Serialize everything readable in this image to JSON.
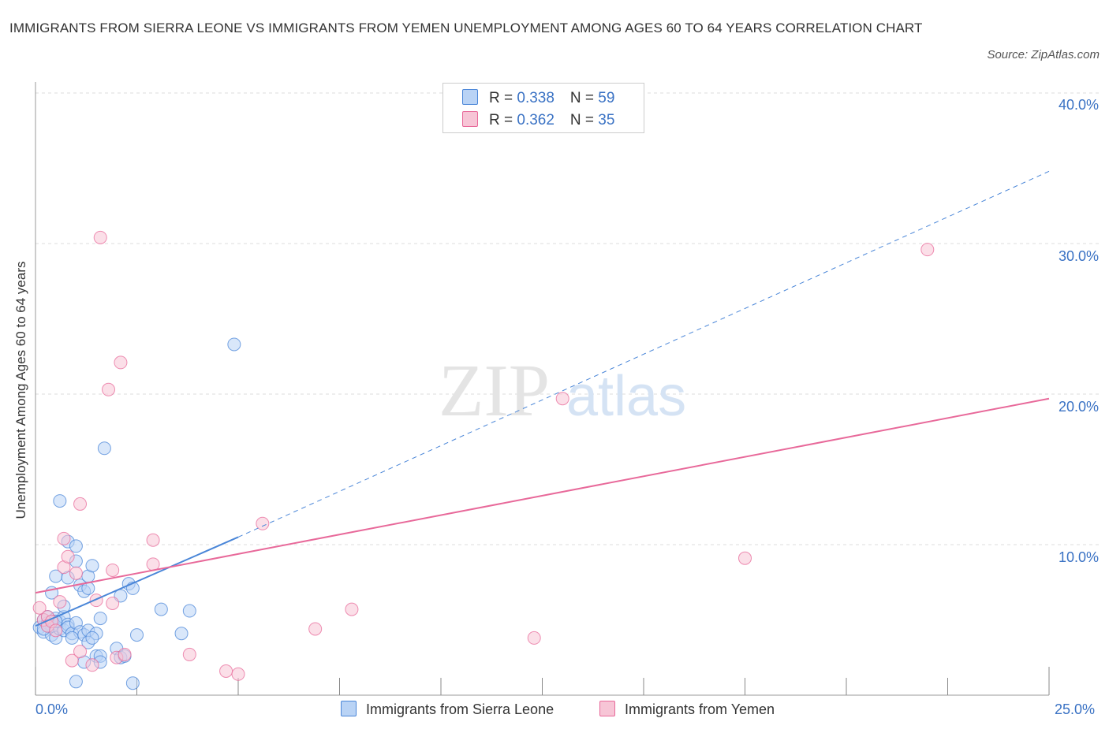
{
  "header": {
    "title": "IMMIGRANTS FROM SIERRA LEONE VS IMMIGRANTS FROM YEMEN UNEMPLOYMENT AMONG AGES 60 TO 64 YEARS CORRELATION CHART",
    "source": "Source: ZipAtlas.com"
  },
  "colors": {
    "blue": "#4a86d8",
    "blue_fill": "#b9d3f5",
    "pink": "#e8699a",
    "pink_fill": "#f7c5d6",
    "axis_text": "#3a72c4",
    "grid": "#dddddd"
  },
  "legend": {
    "rows": [
      {
        "r_label": "R = ",
        "r_value": "0.338",
        "n_label": "N = ",
        "n_value": "59"
      },
      {
        "r_label": "R = ",
        "r_value": "0.362",
        "n_label": "N = ",
        "n_value": "35"
      }
    ]
  },
  "watermark": {
    "zip": "ZIP",
    "atlas": "atlas"
  },
  "chart_data": {
    "type": "scatter",
    "title": "IMMIGRANTS FROM SIERRA LEONE VS IMMIGRANTS FROM YEMEN UNEMPLOYMENT AMONG AGES 60 TO 64 YEARS CORRELATION CHART",
    "xlabel": "",
    "ylabel": "Unemployment Among Ages 60 to 64 years",
    "xlim": [
      0,
      25
    ],
    "ylim": [
      0,
      40
    ],
    "x_tick_labels": [
      "0.0%",
      "25.0%"
    ],
    "y_ticks": [
      10,
      20,
      30,
      40
    ],
    "y_tick_labels": [
      "10.0%",
      "20.0%",
      "30.0%",
      "40.0%"
    ],
    "grid": true,
    "legend_position": "top-center",
    "series": [
      {
        "name": "Immigrants from Sierra Leone",
        "color": "#4a86d8",
        "R": 0.338,
        "N": 59,
        "trend": {
          "x0": 0,
          "y0": 4.6,
          "x1": 5.0,
          "y1": 10.5,
          "dashed_to_x": 25,
          "dashed_to_y": 34.8
        },
        "points": [
          [
            0.1,
            4.5
          ],
          [
            0.2,
            5.0
          ],
          [
            0.2,
            4.2
          ],
          [
            0.3,
            4.8
          ],
          [
            0.3,
            5.2
          ],
          [
            0.4,
            4.0
          ],
          [
            0.4,
            4.6
          ],
          [
            0.5,
            3.8
          ],
          [
            0.5,
            5.1
          ],
          [
            0.6,
            4.4
          ],
          [
            0.6,
            4.9
          ],
          [
            0.7,
            4.3
          ],
          [
            0.7,
            5.2
          ],
          [
            0.8,
            4.7
          ],
          [
            0.8,
            4.5
          ],
          [
            0.9,
            4.1
          ],
          [
            0.4,
            6.8
          ],
          [
            0.5,
            7.9
          ],
          [
            0.7,
            5.9
          ],
          [
            0.8,
            7.8
          ],
          [
            0.6,
            12.9
          ],
          [
            0.8,
            10.2
          ],
          [
            1.0,
            9.9
          ],
          [
            1.0,
            8.9
          ],
          [
            1.1,
            7.3
          ],
          [
            1.2,
            6.9
          ],
          [
            1.3,
            7.1
          ],
          [
            1.3,
            7.9
          ],
          [
            1.4,
            8.6
          ],
          [
            1.0,
            4.8
          ],
          [
            1.1,
            4.2
          ],
          [
            1.2,
            4.0
          ],
          [
            1.3,
            4.3
          ],
          [
            1.5,
            4.1
          ],
          [
            1.6,
            5.1
          ],
          [
            1.2,
            2.2
          ],
          [
            1.3,
            3.5
          ],
          [
            1.5,
            2.6
          ],
          [
            1.6,
            2.6
          ],
          [
            1.0,
            0.9
          ],
          [
            2.0,
            3.1
          ],
          [
            2.1,
            2.5
          ],
          [
            2.2,
            2.6
          ],
          [
            2.4,
            0.8
          ],
          [
            2.5,
            4.0
          ],
          [
            2.1,
            6.6
          ],
          [
            2.3,
            7.4
          ],
          [
            2.4,
            7.1
          ],
          [
            3.1,
            5.7
          ],
          [
            3.6,
            4.1
          ],
          [
            3.8,
            5.6
          ],
          [
            1.7,
            16.4
          ],
          [
            4.9,
            23.3
          ],
          [
            0.9,
            3.8
          ],
          [
            0.3,
            4.6
          ],
          [
            0.5,
            4.9
          ],
          [
            1.4,
            3.8
          ],
          [
            1.6,
            2.2
          ],
          [
            0.2,
            4.4
          ]
        ]
      },
      {
        "name": "Immigrants from Yemen",
        "color": "#e8699a",
        "R": 0.362,
        "N": 35,
        "trend": {
          "x0": 0,
          "y0": 6.8,
          "x1": 25,
          "y1": 19.7
        },
        "points": [
          [
            0.1,
            5.8
          ],
          [
            0.2,
            5.0
          ],
          [
            0.3,
            5.2
          ],
          [
            0.3,
            4.6
          ],
          [
            0.4,
            4.9
          ],
          [
            0.5,
            4.3
          ],
          [
            0.6,
            6.2
          ],
          [
            0.7,
            8.5
          ],
          [
            0.7,
            10.4
          ],
          [
            0.8,
            9.2
          ],
          [
            0.9,
            2.3
          ],
          [
            1.0,
            8.1
          ],
          [
            1.1,
            2.9
          ],
          [
            1.1,
            12.7
          ],
          [
            1.4,
            2.0
          ],
          [
            1.5,
            6.3
          ],
          [
            1.6,
            30.4
          ],
          [
            1.8,
            20.3
          ],
          [
            1.9,
            8.3
          ],
          [
            1.9,
            6.1
          ],
          [
            2.0,
            2.5
          ],
          [
            2.1,
            22.1
          ],
          [
            2.2,
            2.7
          ],
          [
            2.9,
            8.7
          ],
          [
            2.9,
            10.3
          ],
          [
            3.8,
            2.7
          ],
          [
            4.7,
            1.6
          ],
          [
            5.0,
            1.4
          ],
          [
            5.6,
            11.4
          ],
          [
            6.9,
            4.4
          ],
          [
            7.8,
            5.7
          ],
          [
            12.3,
            3.8
          ],
          [
            13.0,
            19.7
          ],
          [
            17.5,
            9.1
          ],
          [
            22.0,
            29.6
          ]
        ]
      }
    ]
  },
  "bottom_legend": {
    "items": [
      {
        "label": "Immigrants from Sierra Leone"
      },
      {
        "label": "Immigrants from Yemen"
      }
    ]
  }
}
